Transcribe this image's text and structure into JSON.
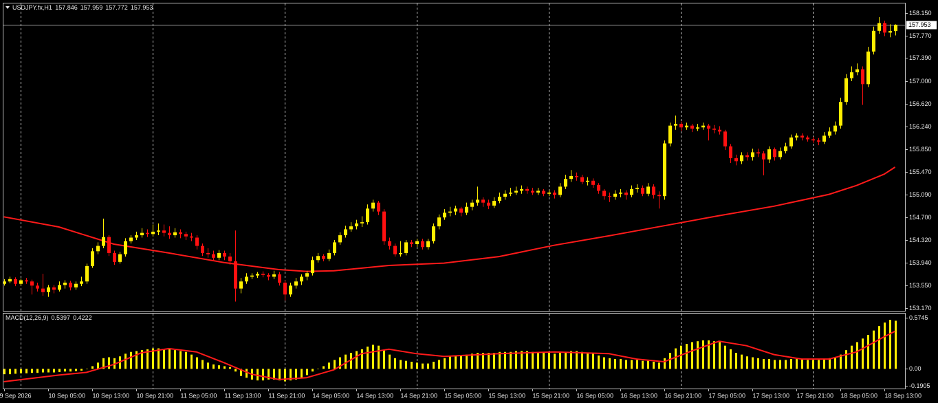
{
  "chart_data": [
    {
      "type": "candlestick",
      "symbol": "USDJPY.fx,H1",
      "up_color": "#ffee00",
      "down_color": "#ff1010",
      "open": [
        153.58,
        153.62,
        153.66,
        153.58,
        153.64,
        153.62,
        153.55,
        153.5,
        153.44,
        153.52,
        153.48,
        153.56,
        153.6,
        153.52,
        153.58,
        153.62,
        153.88,
        154.13,
        154.22,
        154.37,
        154.1,
        153.95,
        154.08,
        154.3,
        154.36,
        154.4,
        154.44,
        154.42,
        154.46,
        154.48,
        154.44,
        154.4,
        154.45,
        154.42,
        154.38,
        154.36,
        154.22,
        154.1,
        154.08,
        154.02,
        154.1,
        154.04,
        153.96,
        153.5,
        153.62,
        153.7,
        153.72,
        153.75,
        153.73,
        153.7,
        153.74,
        153.6,
        153.4,
        153.55,
        153.62,
        153.7,
        153.76,
        153.98,
        154.05,
        154.0,
        154.1,
        154.28,
        154.4,
        154.5,
        154.55,
        154.6,
        154.62,
        154.85,
        154.95,
        154.8,
        154.3,
        154.22,
        154.08,
        154.1,
        154.28,
        154.25,
        154.3,
        154.2,
        154.3,
        154.55,
        154.7,
        154.78,
        154.8,
        154.85,
        154.78,
        154.88,
        154.95,
        155.0,
        154.95,
        154.9,
        154.98,
        155.05,
        155.1,
        155.12,
        155.15,
        155.18,
        155.15,
        155.12,
        155.15,
        155.1,
        155.12,
        155.08,
        155.22,
        155.35,
        155.4,
        155.38,
        155.3,
        155.32,
        155.25,
        155.15,
        155.06,
        155.05,
        155.1,
        155.12,
        155.08,
        155.18,
        155.2,
        155.1,
        155.22,
        155.08,
        155.06,
        155.95,
        156.25,
        156.28,
        156.22,
        156.25,
        156.2,
        156.22,
        156.25,
        156.2,
        156.18,
        156.15,
        155.9,
        155.7,
        155.65,
        155.75,
        155.72,
        155.8,
        155.78,
        155.68,
        155.85,
        155.72,
        155.82,
        155.9,
        156.05,
        156.08,
        156.05,
        156.02,
        156.0,
        155.98,
        156.08,
        156.15,
        156.25,
        156.65,
        157.05,
        157.15,
        157.2,
        156.95,
        157.5,
        157.85,
        157.98,
        157.82,
        157.846
      ],
      "high": [
        153.66,
        153.7,
        153.69,
        153.67,
        153.68,
        153.65,
        153.6,
        153.75,
        153.56,
        153.56,
        153.62,
        153.64,
        153.63,
        153.62,
        153.7,
        153.92,
        154.18,
        154.28,
        154.68,
        154.4,
        154.14,
        154.12,
        154.35,
        154.4,
        154.46,
        154.52,
        154.5,
        154.58,
        154.6,
        154.58,
        154.55,
        154.52,
        154.5,
        154.46,
        154.44,
        154.4,
        154.26,
        154.18,
        154.14,
        154.15,
        154.14,
        154.1,
        154.48,
        153.68,
        153.76,
        153.76,
        153.78,
        153.79,
        153.76,
        153.8,
        153.78,
        153.64,
        153.6,
        153.68,
        153.74,
        153.8,
        154.04,
        154.1,
        154.08,
        154.16,
        154.32,
        154.45,
        154.56,
        154.62,
        154.66,
        154.72,
        154.92,
        155.0,
        154.98,
        154.84,
        154.36,
        154.26,
        154.3,
        154.32,
        154.32,
        154.34,
        154.34,
        154.34,
        154.6,
        154.75,
        154.84,
        154.88,
        154.9,
        154.88,
        154.95,
        155.0,
        155.22,
        155.04,
        155.0,
        155.04,
        155.12,
        155.16,
        155.2,
        155.22,
        155.24,
        155.22,
        155.2,
        155.2,
        155.18,
        155.16,
        155.16,
        155.28,
        155.42,
        155.5,
        155.46,
        155.42,
        155.38,
        155.36,
        155.28,
        155.18,
        155.12,
        155.16,
        155.18,
        155.16,
        155.24,
        155.26,
        155.24,
        155.28,
        155.26,
        155.14,
        156.0,
        156.3,
        156.42,
        156.32,
        156.3,
        156.28,
        156.28,
        156.3,
        156.28,
        156.26,
        156.24,
        156.18,
        155.94,
        155.76,
        155.8,
        155.8,
        155.86,
        155.86,
        155.82,
        155.9,
        155.88,
        155.88,
        155.96,
        156.1,
        156.12,
        156.12,
        156.08,
        156.06,
        156.04,
        156.14,
        156.22,
        156.32,
        156.72,
        157.12,
        157.25,
        157.3,
        157.25,
        157.58,
        157.92,
        158.08,
        158.02,
        157.96,
        157.959
      ],
      "low": [
        153.55,
        153.59,
        153.54,
        153.55,
        153.58,
        153.4,
        153.45,
        153.38,
        153.36,
        153.42,
        153.45,
        153.5,
        153.47,
        153.48,
        153.54,
        153.58,
        153.85,
        154.08,
        154.18,
        154.05,
        153.9,
        153.92,
        154.04,
        154.26,
        154.32,
        154.36,
        154.37,
        154.38,
        154.4,
        154.38,
        154.34,
        154.36,
        154.35,
        154.32,
        154.3,
        154.16,
        154.05,
        154.02,
        153.96,
        153.98,
        153.98,
        153.9,
        153.28,
        153.42,
        153.58,
        153.66,
        153.68,
        153.69,
        153.64,
        153.66,
        153.55,
        153.3,
        153.36,
        153.5,
        153.56,
        153.64,
        153.72,
        153.94,
        153.96,
        153.96,
        154.06,
        154.24,
        154.36,
        154.46,
        154.5,
        154.54,
        154.58,
        154.8,
        154.74,
        154.24,
        154.16,
        154.04,
        154.04,
        154.06,
        154.2,
        154.2,
        154.16,
        154.16,
        154.26,
        154.5,
        154.66,
        154.72,
        154.74,
        154.72,
        154.74,
        154.82,
        154.9,
        154.88,
        154.84,
        154.86,
        154.94,
        155.0,
        155.06,
        155.08,
        155.1,
        155.1,
        155.08,
        155.08,
        155.06,
        155.06,
        155.02,
        155.04,
        155.18,
        155.3,
        155.32,
        155.26,
        155.24,
        155.2,
        155.1,
        155.0,
        154.96,
        155.0,
        155.04,
        155.0,
        155.04,
        155.12,
        155.06,
        155.06,
        155.02,
        154.85,
        155.0,
        155.9,
        156.18,
        156.16,
        156.18,
        156.14,
        156.16,
        156.18,
        156.0,
        156.12,
        156.1,
        155.84,
        155.62,
        155.58,
        155.6,
        155.66,
        155.66,
        155.72,
        155.41,
        155.62,
        155.66,
        155.68,
        155.78,
        155.86,
        156.0,
        156.0,
        155.98,
        155.96,
        155.92,
        155.94,
        156.04,
        156.1,
        156.2,
        156.6,
        157.0,
        157.1,
        156.6,
        156.9,
        157.45,
        157.8,
        157.76,
        157.74,
        157.772
      ],
      "close": [
        153.62,
        153.66,
        153.58,
        153.64,
        153.62,
        153.55,
        153.5,
        153.44,
        153.52,
        153.48,
        153.56,
        153.6,
        153.52,
        153.58,
        153.62,
        153.88,
        154.13,
        154.22,
        154.37,
        154.1,
        153.95,
        154.08,
        154.3,
        154.36,
        154.4,
        154.44,
        154.42,
        154.46,
        154.48,
        154.44,
        154.4,
        154.45,
        154.42,
        154.38,
        154.36,
        154.22,
        154.1,
        154.08,
        154.02,
        154.1,
        154.04,
        153.96,
        153.5,
        153.62,
        153.7,
        153.72,
        153.75,
        153.73,
        153.7,
        153.74,
        153.6,
        153.4,
        153.55,
        153.62,
        153.7,
        153.76,
        153.98,
        154.05,
        154.0,
        154.1,
        154.28,
        154.4,
        154.5,
        154.55,
        154.6,
        154.62,
        154.85,
        154.95,
        154.8,
        154.3,
        154.22,
        154.08,
        154.1,
        154.28,
        154.25,
        154.3,
        154.2,
        154.3,
        154.55,
        154.7,
        154.78,
        154.8,
        154.85,
        154.78,
        154.88,
        154.95,
        155.0,
        154.95,
        154.9,
        154.98,
        155.05,
        155.1,
        155.12,
        155.15,
        155.18,
        155.15,
        155.12,
        155.15,
        155.1,
        155.12,
        155.08,
        155.22,
        155.35,
        155.4,
        155.38,
        155.3,
        155.32,
        155.25,
        155.15,
        155.06,
        155.05,
        155.1,
        155.12,
        155.08,
        155.18,
        155.2,
        155.1,
        155.22,
        155.08,
        155.06,
        155.95,
        156.25,
        156.28,
        156.22,
        156.25,
        156.2,
        156.22,
        156.25,
        156.2,
        156.18,
        156.15,
        155.9,
        155.7,
        155.65,
        155.75,
        155.72,
        155.8,
        155.78,
        155.68,
        155.85,
        155.72,
        155.82,
        155.9,
        156.05,
        156.08,
        156.05,
        156.02,
        156.0,
        155.98,
        156.08,
        156.15,
        156.25,
        156.65,
        157.05,
        157.15,
        157.2,
        156.95,
        157.5,
        157.85,
        157.98,
        157.82,
        157.846,
        157.953
      ],
      "moving_average": {
        "color": "#ff1a1a",
        "x": [
          0,
          10,
          20,
          30,
          40,
          50,
          55,
          60,
          70,
          80,
          90,
          100,
          110,
          120,
          130,
          140,
          150,
          155,
          160,
          162
        ],
        "values": [
          154.71,
          154.54,
          154.25,
          154.1,
          153.94,
          153.82,
          153.79,
          153.8,
          153.89,
          153.93,
          154.04,
          154.23,
          154.39,
          154.56,
          154.73,
          154.89,
          155.09,
          155.24,
          155.43,
          155.55
        ]
      },
      "bid": 157.953,
      "xlim": [
        -0.2,
        163.8
      ],
      "xgrid": [
        3,
        27,
        51,
        75,
        99,
        123,
        147
      ],
      "ylim": [
        153.124,
        158.312
      ],
      "yticks": [
        {
          "value": 158.15,
          "label": "158.150"
        },
        {
          "value": 157.77,
          "label": "157.770"
        },
        {
          "value": 157.39,
          "label": "157.390"
        },
        {
          "value": 157.0,
          "label": "157.000"
        },
        {
          "value": 156.62,
          "label": "156.620"
        },
        {
          "value": 156.24,
          "label": "156.240"
        },
        {
          "value": 155.85,
          "label": "155.850"
        },
        {
          "value": 155.47,
          "label": "155.470"
        },
        {
          "value": 155.09,
          "label": "155.090"
        },
        {
          "value": 154.7,
          "label": "154.700"
        },
        {
          "value": 154.32,
          "label": "154.320"
        },
        {
          "value": 153.94,
          "label": "153.940"
        },
        {
          "value": 153.55,
          "label": "153.550"
        },
        {
          "value": 153.17,
          "label": "153.170"
        }
      ]
    },
    {
      "type": "macd",
      "name": "MACD(12,26,9)",
      "histogram": {
        "color": "#ffee00",
        "values": [
          -0.06,
          -0.06,
          -0.055,
          -0.05,
          -0.05,
          -0.045,
          -0.045,
          -0.04,
          -0.04,
          -0.04,
          -0.035,
          -0.03,
          -0.03,
          -0.025,
          -0.02,
          0.0,
          0.03,
          0.07,
          0.12,
          0.13,
          0.12,
          0.14,
          0.17,
          0.19,
          0.2,
          0.21,
          0.22,
          0.23,
          0.23,
          0.22,
          0.22,
          0.21,
          0.2,
          0.19,
          0.16,
          0.13,
          0.1,
          0.07,
          0.05,
          0.04,
          0.03,
          0.02,
          -0.03,
          -0.08,
          -0.1,
          -0.12,
          -0.13,
          -0.13,
          -0.12,
          -0.12,
          -0.13,
          -0.14,
          -0.13,
          -0.12,
          -0.1,
          -0.07,
          -0.03,
          0.0,
          0.03,
          0.07,
          0.1,
          0.13,
          0.16,
          0.18,
          0.2,
          0.22,
          0.25,
          0.27,
          0.26,
          0.21,
          0.16,
          0.12,
          0.1,
          0.09,
          0.08,
          0.07,
          0.06,
          0.06,
          0.08,
          0.1,
          0.12,
          0.14,
          0.15,
          0.15,
          0.16,
          0.17,
          0.18,
          0.18,
          0.18,
          0.18,
          0.19,
          0.19,
          0.19,
          0.2,
          0.2,
          0.2,
          0.19,
          0.19,
          0.18,
          0.18,
          0.17,
          0.18,
          0.19,
          0.2,
          0.2,
          0.19,
          0.18,
          0.17,
          0.15,
          0.13,
          0.12,
          0.11,
          0.11,
          0.1,
          0.1,
          0.1,
          0.09,
          0.09,
          0.08,
          0.07,
          0.12,
          0.18,
          0.23,
          0.26,
          0.28,
          0.3,
          0.31,
          0.32,
          0.32,
          0.31,
          0.3,
          0.26,
          0.22,
          0.18,
          0.16,
          0.14,
          0.13,
          0.12,
          0.11,
          0.11,
          0.1,
          0.1,
          0.1,
          0.11,
          0.11,
          0.11,
          0.1,
          0.1,
          0.1,
          0.11,
          0.12,
          0.13,
          0.16,
          0.21,
          0.26,
          0.3,
          0.34,
          0.38,
          0.43,
          0.48,
          0.52,
          0.55,
          0.5397
        ]
      },
      "signal": {
        "color": "#ff1a1a",
        "x": [
          0,
          10,
          15,
          20,
          25,
          30,
          35,
          40,
          45,
          50,
          55,
          60,
          65,
          70,
          75,
          80,
          90,
          100,
          110,
          115,
          120,
          125,
          130,
          135,
          140,
          145,
          150,
          155,
          160,
          162
        ],
        "values": [
          -0.144,
          -0.07,
          -0.04,
          0.05,
          0.18,
          0.227,
          0.19,
          0.07,
          -0.06,
          -0.12,
          -0.1,
          -0.01,
          0.17,
          0.22,
          0.17,
          0.14,
          0.17,
          0.19,
          0.17,
          0.11,
          0.08,
          0.2,
          0.31,
          0.26,
          0.16,
          0.11,
          0.11,
          0.19,
          0.36,
          0.4222
        ]
      },
      "xlim": [
        -0.2,
        163.8
      ],
      "xgrid": [
        3,
        27,
        51,
        75,
        99,
        123,
        147
      ],
      "ylim": [
        -0.221,
        0.62
      ],
      "yticks": [
        0.5745,
        {
          "value": 0,
          "label": "0.00"
        },
        -0.1905
      ],
      "xticks": [
        {
          "value": 0,
          "label": "9 Sep 2026"
        },
        {
          "value": 8,
          "label": "10 Sep 05:00"
        },
        {
          "value": 16,
          "label": "10 Sep 13:00"
        },
        {
          "value": 24,
          "label": "10 Sep 21:00"
        },
        {
          "value": 32,
          "label": "11 Sep 05:00"
        },
        {
          "value": 40,
          "label": "11 Sep 13:00"
        },
        {
          "value": 48,
          "label": "11 Sep 21:00"
        },
        {
          "value": 56,
          "label": "14 Sep 05:00"
        },
        {
          "value": 64,
          "label": "14 Sep 13:00"
        },
        {
          "value": 72,
          "label": "14 Sep 21:00"
        },
        {
          "value": 80,
          "label": "15 Sep 05:00"
        },
        {
          "value": 88,
          "label": "15 Sep 13:00"
        },
        {
          "value": 96,
          "label": "15 Sep 21:00"
        },
        {
          "value": 104,
          "label": "16 Sep 05:00"
        },
        {
          "value": 112,
          "label": "16 Sep 13:00"
        },
        {
          "value": 120,
          "label": "16 Sep 21:00"
        },
        {
          "value": 128,
          "label": "17 Sep 05:00"
        },
        {
          "value": 136,
          "label": "17 Sep 13:00"
        },
        {
          "value": 144,
          "label": "17 Sep 21:00"
        },
        {
          "value": 152,
          "label": "18 Sep 05:00"
        },
        {
          "value": 160,
          "label": "18 Sep 13:00"
        }
      ]
    }
  ]
}
